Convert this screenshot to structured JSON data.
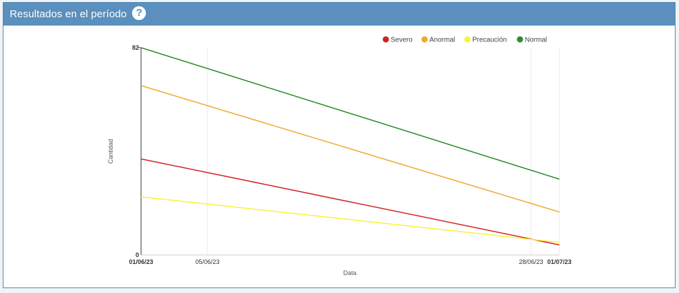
{
  "header": {
    "title": "Resultados en el período",
    "help_icon": "question-circle-icon"
  },
  "chart_data": {
    "type": "line",
    "title": "",
    "xlabel": "Data",
    "ylabel": "Cantidad",
    "x": [
      "01/06/23",
      "01/07/23"
    ],
    "ylim": [
      0,
      82
    ],
    "y_ticks": [
      "0",
      "82"
    ],
    "x_ticks": [
      {
        "label": "01/06/23",
        "bold": true
      },
      {
        "label": "05/06/23",
        "bold": false
      },
      {
        "label": "28/06/23",
        "bold": false
      },
      {
        "label": "01/07/23",
        "bold": true
      }
    ],
    "grid": "vertical",
    "legend": "top-right",
    "series": [
      {
        "name": "Severo",
        "color": "#d42121",
        "values": [
          38,
          4
        ]
      },
      {
        "name": "Anormal",
        "color": "#f0a830",
        "values": [
          67,
          17
        ]
      },
      {
        "name": "Precaución",
        "color": "#f5f53a",
        "values": [
          23,
          5
        ]
      },
      {
        "name": "Normal",
        "color": "#2e8b2e",
        "values": [
          82,
          30
        ]
      }
    ]
  }
}
